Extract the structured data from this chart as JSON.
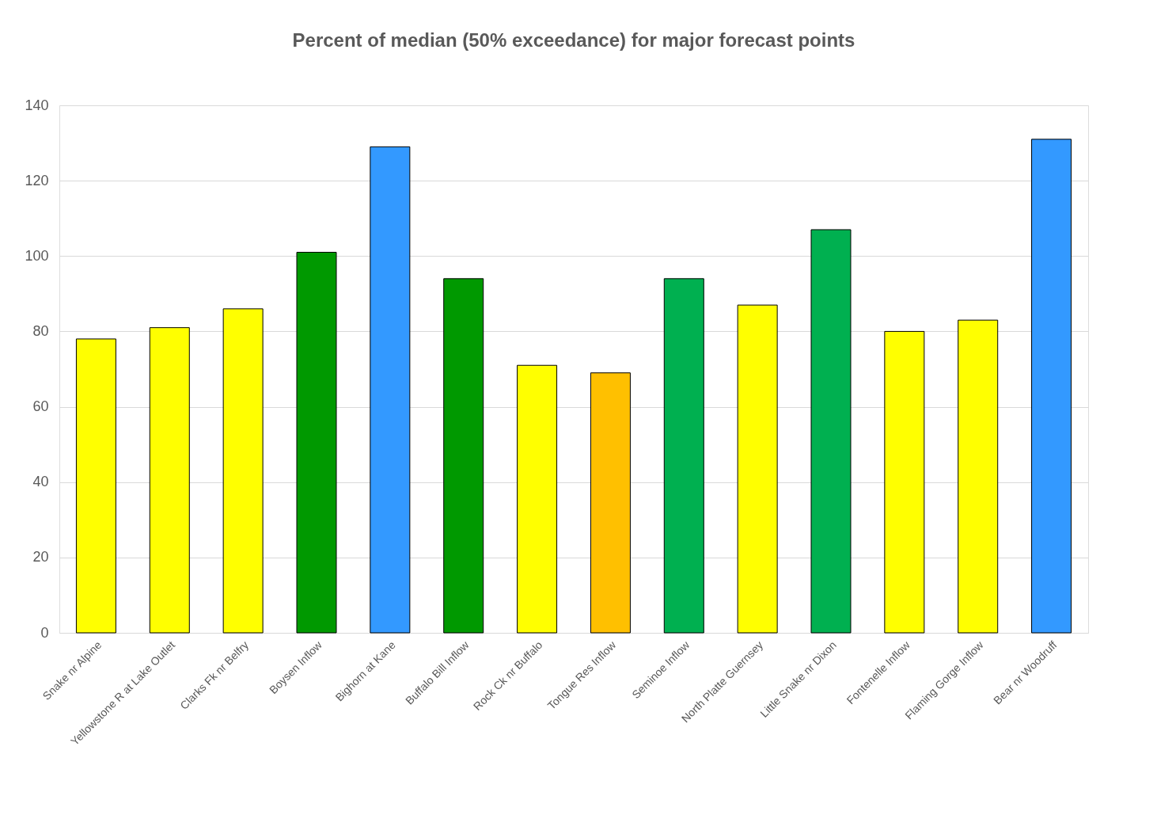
{
  "chart_data": {
    "type": "bar",
    "title": "Percent of median (50% exceedance) for major forecast points",
    "categories": [
      "Snake nr Alpine",
      "Yellowstone R at Lake Outlet",
      "Clarks Fk nr Belfry",
      "Boysen Inflow",
      "Bighorn at Kane",
      "Buffalo Bill Inflow",
      "Rock Ck nr Buffalo",
      "Tongue Res Inflow",
      "Seminoe Inflow",
      "North Platte Guernsey",
      "Little Snake nr Dixon",
      "Fontenelle Inflow",
      "Flaming Gorge Inflow",
      "Bear nr Woodruff"
    ],
    "values": [
      78,
      81,
      86,
      101,
      129,
      94,
      71,
      69,
      94,
      87,
      107,
      80,
      83,
      131
    ],
    "colors": [
      "#ffff00",
      "#ffff00",
      "#ffff00",
      "#009900",
      "#3399ff",
      "#009900",
      "#ffff00",
      "#ffc000",
      "#00b050",
      "#ffff00",
      "#00b050",
      "#ffff00",
      "#ffff00",
      "#3399ff"
    ],
    "ylim": [
      0,
      140
    ],
    "yticks": [
      0,
      20,
      40,
      60,
      80,
      100,
      120,
      140
    ],
    "grid": "y",
    "legend": false
  }
}
